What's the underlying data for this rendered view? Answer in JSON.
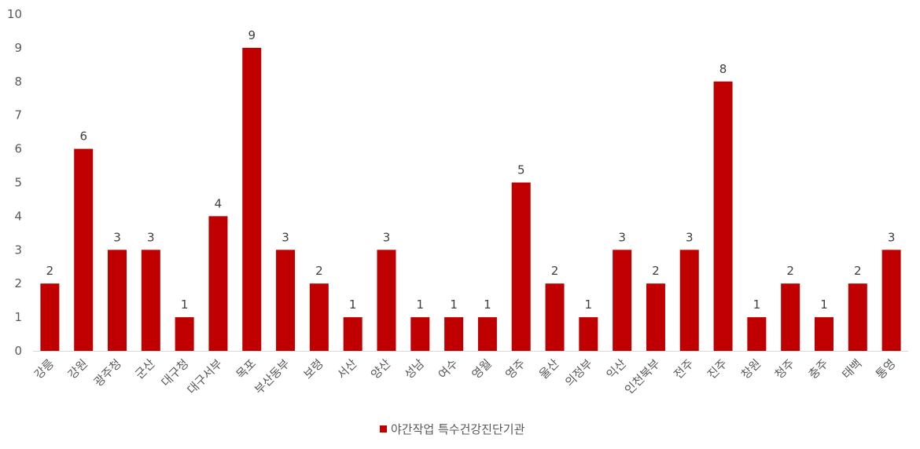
{
  "chart_data": {
    "type": "bar",
    "categories": [
      "강릉",
      "강원",
      "광주청",
      "군산",
      "대구청",
      "대구서부",
      "목포",
      "부산동부",
      "보령",
      "서산",
      "양산",
      "성남",
      "여수",
      "영월",
      "영주",
      "울산",
      "의정부",
      "익산",
      "인천북부",
      "전주",
      "진주",
      "창원",
      "청주",
      "충주",
      "태백",
      "통영"
    ],
    "series": [
      {
        "name": "야간작업 특수건강진단기관",
        "values": [
          2,
          6,
          3,
          3,
          1,
          4,
          9,
          3,
          2,
          1,
          3,
          1,
          1,
          1,
          5,
          2,
          1,
          3,
          2,
          3,
          8,
          1,
          2,
          1,
          2,
          3
        ],
        "color": "#C00000"
      }
    ],
    "ylim": [
      0,
      10
    ],
    "yticks": [
      0,
      1,
      2,
      3,
      4,
      5,
      6,
      7,
      8,
      9,
      10
    ],
    "grid": false,
    "data_labels": true,
    "legend_position": "bottom",
    "title": "",
    "xlabel": "",
    "ylabel": ""
  }
}
